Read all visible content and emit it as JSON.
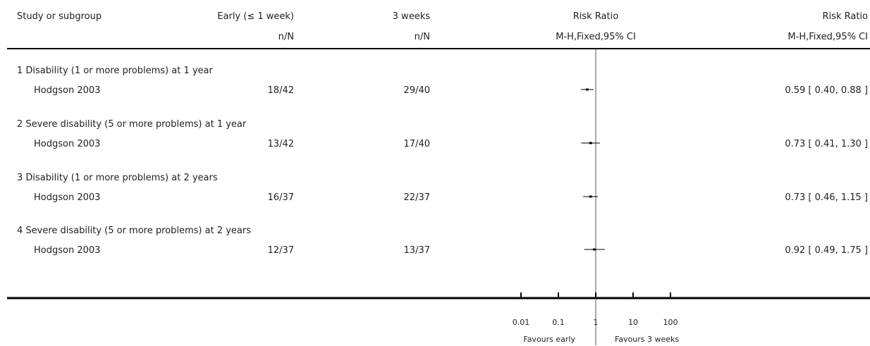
{
  "header": {
    "col_study": "Study or subgroup",
    "col_early": "Early (≤ 1 week)",
    "col_early_sub": "n/N",
    "col_late": "3 weeks",
    "col_late_sub": "n/N",
    "col_plot": "Risk Ratio",
    "col_plot_sub": "M-H,Fixed,95% CI",
    "col_rr": "Risk Ratio",
    "col_rr_sub": "M-H,Fixed,95% CI"
  },
  "chart_data": {
    "type": "forest",
    "scale": "log",
    "x_ticks": [
      0.01,
      0.1,
      1,
      10,
      100
    ],
    "x_tick_labels": [
      "0.01",
      "0.1",
      "1",
      "10",
      "100"
    ],
    "reference_line": 1,
    "favours_left": "Favours early",
    "favours_right": "Favours 3 weeks",
    "subgroups": [
      {
        "title": "1 Disability (1 or more problems) at 1 year",
        "study": "Hodgson 2003",
        "early": "18/42",
        "late": "29/40",
        "rr": 0.59,
        "lo": 0.4,
        "hi": 0.88,
        "ci_text": "0.59 [ 0.40, 0.88 ]"
      },
      {
        "title": "2 Severe disability (5 or more problems) at 1 year",
        "study": "Hodgson 2003",
        "early": "13/42",
        "late": "17/40",
        "rr": 0.73,
        "lo": 0.41,
        "hi": 1.3,
        "ci_text": "0.73 [ 0.41, 1.30 ]"
      },
      {
        "title": "3 Disability (1 or more problems) at 2 years",
        "study": "Hodgson 2003",
        "early": "16/37",
        "late": "22/37",
        "rr": 0.73,
        "lo": 0.46,
        "hi": 1.15,
        "ci_text": "0.73 [ 0.46, 1.15 ]"
      },
      {
        "title": "4 Severe disability (5 or more problems) at 2 years",
        "study": "Hodgson 2003",
        "early": "12/37",
        "late": "13/37",
        "rr": 0.92,
        "lo": 0.49,
        "hi": 1.75,
        "ci_text": "0.92 [ 0.49, 1.75 ]"
      }
    ]
  }
}
